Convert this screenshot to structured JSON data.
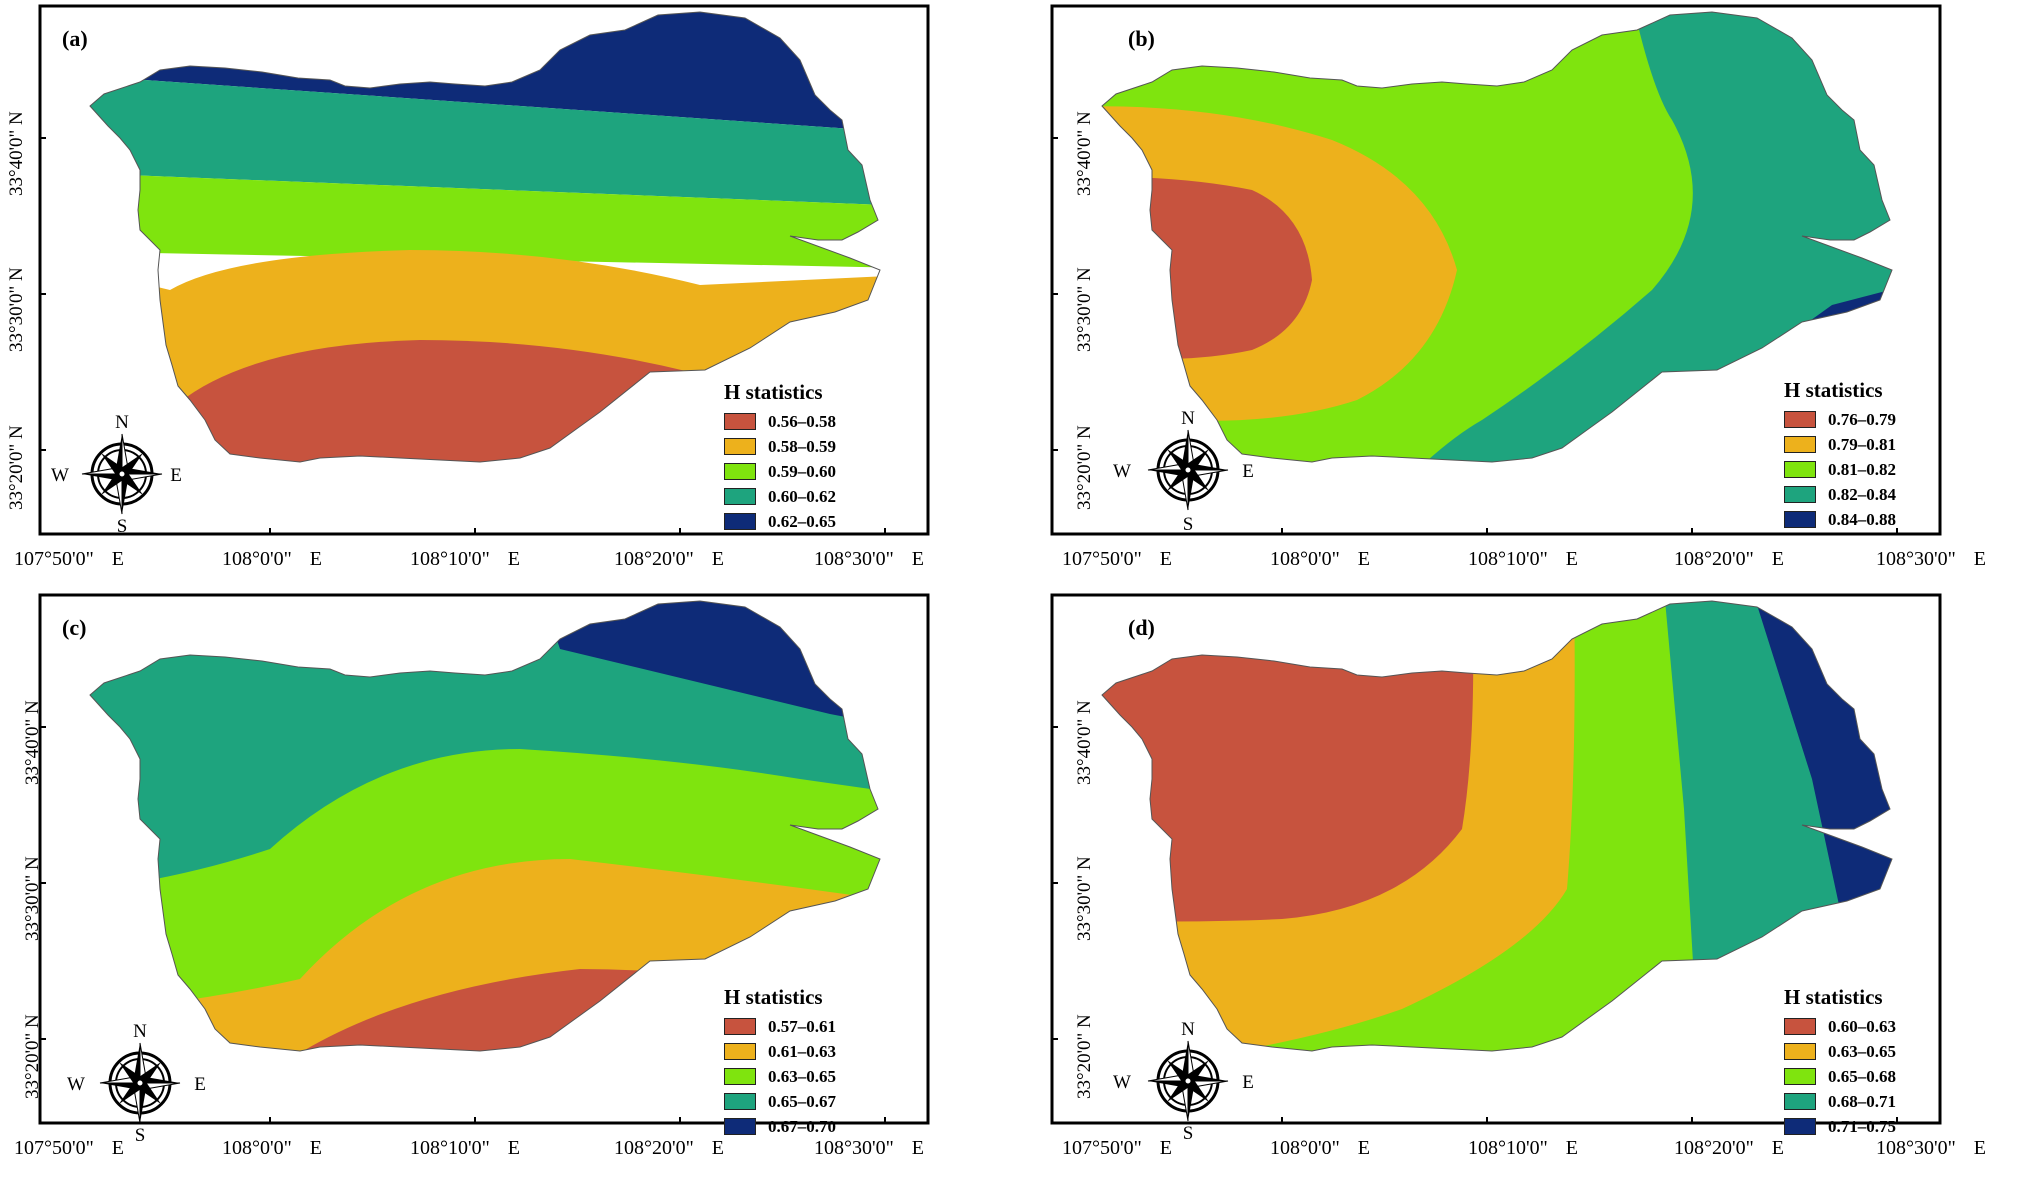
{
  "colors": {
    "class1": "#C7533E",
    "class2": "#EDB11C",
    "class3": "#7FE40E",
    "class4": "#1EA47E",
    "class5": "#0E2B78"
  },
  "compass": {
    "n": "N",
    "s": "S",
    "e": "E",
    "w": "W"
  },
  "axis": {
    "x_ticks": [
      "107°50'0\"",
      "108°0'0\"",
      "108°10'0\"",
      "108°20'0\"",
      "108°30'0\""
    ],
    "x_dir": "E",
    "y_ticks": [
      "33°40'0\" N",
      "33°30'0\" N",
      "33°20'0\" N"
    ]
  },
  "panels": [
    {
      "label": "(a)",
      "legend_title": "H statistics",
      "classes": [
        "0.56–0.58",
        "0.58–0.59",
        "0.59–0.60",
        "0.60–0.62",
        "0.62–0.65"
      ]
    },
    {
      "label": "(b)",
      "legend_title": "H statistics",
      "classes": [
        "0.76–0.79",
        "0.79–0.81",
        "0.81–0.82",
        "0.82–0.84",
        "0.84–0.88"
      ]
    },
    {
      "label": "(c)",
      "legend_title": "H statistics",
      "classes": [
        "0.57–0.61",
        "0.61–0.63",
        "0.63–0.65",
        "0.65–0.67",
        "0.67–0.70"
      ]
    },
    {
      "label": "(d)",
      "legend_title": "H statistics",
      "classes": [
        "0.60–0.63",
        "0.63–0.65",
        "0.65–0.68",
        "0.68–0.71",
        "0.71–0.75"
      ]
    }
  ]
}
